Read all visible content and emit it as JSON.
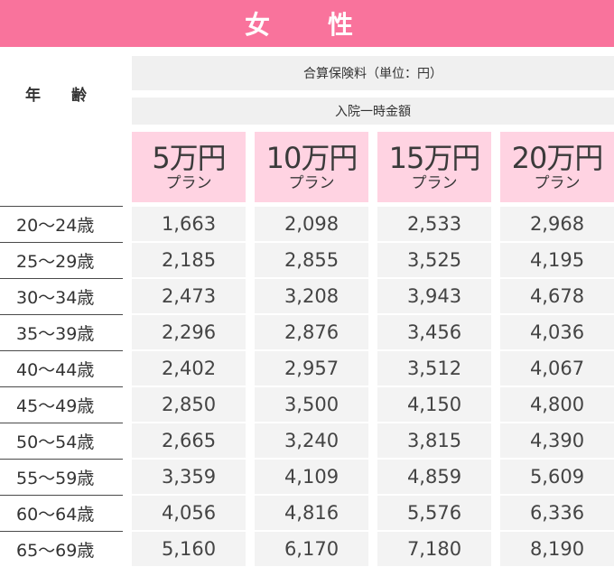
{
  "title": "女　性",
  "age_header": "年 齢",
  "premium_label": "合算保険料（単位：円）",
  "benefit_label": "入院一時金額",
  "plans": [
    {
      "amount": "5万円",
      "sub": "プラン"
    },
    {
      "amount": "10万円",
      "sub": "プラン"
    },
    {
      "amount": "15万円",
      "sub": "プラン"
    },
    {
      "amount": "20万円",
      "sub": "プラン"
    }
  ],
  "rows": [
    {
      "age": "20〜24歳",
      "values": [
        "1,663",
        "2,098",
        "2,533",
        "2,968"
      ]
    },
    {
      "age": "25〜29歳",
      "values": [
        "2,185",
        "2,855",
        "3,525",
        "4,195"
      ]
    },
    {
      "age": "30〜34歳",
      "values": [
        "2,473",
        "3,208",
        "3,943",
        "4,678"
      ]
    },
    {
      "age": "35〜39歳",
      "values": [
        "2,296",
        "2,876",
        "3,456",
        "4,036"
      ]
    },
    {
      "age": "40〜44歳",
      "values": [
        "2,402",
        "2,957",
        "3,512",
        "4,067"
      ]
    },
    {
      "age": "45〜49歳",
      "values": [
        "2,850",
        "3,500",
        "4,150",
        "4,800"
      ]
    },
    {
      "age": "50〜54歳",
      "values": [
        "2,665",
        "3,240",
        "3,815",
        "4,390"
      ]
    },
    {
      "age": "55〜59歳",
      "values": [
        "3,359",
        "4,109",
        "4,859",
        "5,609"
      ]
    },
    {
      "age": "60〜64歳",
      "values": [
        "4,056",
        "4,816",
        "5,576",
        "6,336"
      ]
    },
    {
      "age": "65〜69歳",
      "values": [
        "5,160",
        "6,170",
        "7,180",
        "8,190"
      ]
    }
  ],
  "colors": {
    "header_bg": "#f9739c",
    "plan_bg": "#ffd3e2",
    "cell_bg": "#f3f3f3",
    "label_bg": "#f0f0f0"
  }
}
